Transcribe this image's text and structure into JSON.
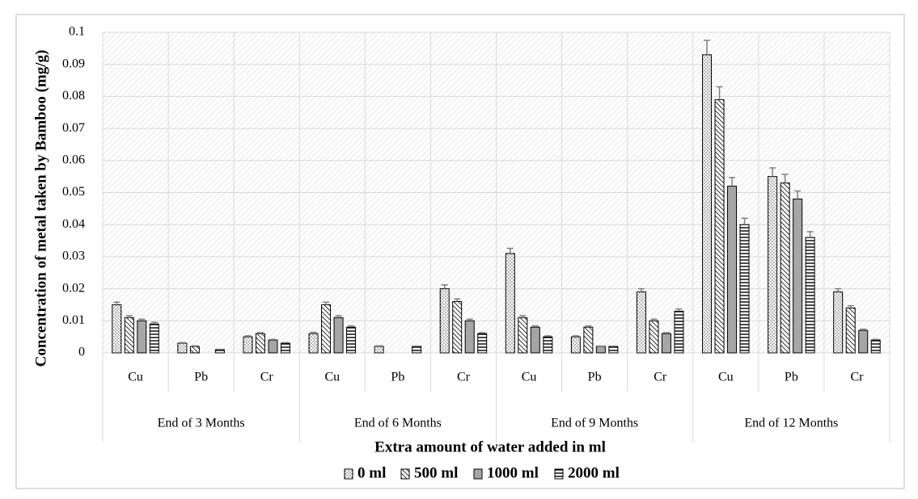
{
  "chart_data": {
    "type": "bar",
    "y_label": "Concentration of metal taken by Bamboo (mg/g)",
    "x_label": "Extra amount of water added in ml",
    "categories": [
      "Cu",
      "Pb",
      "Cr",
      "Cu",
      "Pb",
      "Cr",
      "Cu",
      "Pb",
      "Cr",
      "Cu",
      "Pb",
      "Cr"
    ],
    "groups": [
      "End of 3 Months",
      "End of 6 Months",
      "End of 9 Months",
      "End of 12 Months"
    ],
    "series": [
      {
        "name": "0 ml",
        "color": "#ffffff",
        "pattern": "dots",
        "values": [
          0.015,
          0.003,
          0.005,
          0.006,
          0.002,
          0.02,
          0.031,
          0.005,
          0.019,
          0.093,
          0.055,
          0.019
        ],
        "errors": [
          0.0008,
          0.0002,
          0.0003,
          0.0004,
          0.0002,
          0.0012,
          0.0016,
          0.0003,
          0.001,
          0.0045,
          0.0027,
          0.001
        ]
      },
      {
        "name": "500 ml",
        "color": "#ffffff",
        "pattern": "diagonal",
        "values": [
          0.011,
          0.002,
          0.006,
          0.015,
          0,
          0.016,
          0.011,
          0.008,
          0.01,
          0.079,
          0.053,
          0.014
        ],
        "errors": [
          0.0006,
          0.0002,
          0.0003,
          0.0008,
          0,
          0.0008,
          0.0006,
          0.0004,
          0.0005,
          0.004,
          0.0027,
          0.0007
        ]
      },
      {
        "name": "1000 ml",
        "color": "#a6a6a6",
        "pattern": "none",
        "values": [
          0.01,
          0,
          0.004,
          0.011,
          0,
          0.01,
          0.008,
          0.002,
          0.006,
          0.052,
          0.048,
          0.007
        ],
        "errors": [
          0.0005,
          0,
          0.0002,
          0.0006,
          0,
          0.0005,
          0.0004,
          0.0001,
          0.0003,
          0.0027,
          0.0025,
          0.0004
        ]
      },
      {
        "name": "2000 ml",
        "color": "#ffffff",
        "pattern": "horizontal",
        "values": [
          0.009,
          0.001,
          0.003,
          0.008,
          0.002,
          0.006,
          0.005,
          0.002,
          0.013,
          0.04,
          0.036,
          0.004
        ],
        "errors": [
          0.0005,
          0.0001,
          0.0002,
          0.0004,
          0.0001,
          0.0003,
          0.0003,
          0.0001,
          0.0007,
          0.002,
          0.0018,
          0.0002
        ]
      }
    ],
    "ylim": [
      0,
      0.1
    ],
    "yticks": [
      0,
      0.01,
      0.02,
      0.03,
      0.04,
      0.05,
      0.06,
      0.07,
      0.08,
      0.09,
      0.1
    ],
    "grid": true,
    "error_bars": true,
    "legend": "bottom"
  }
}
